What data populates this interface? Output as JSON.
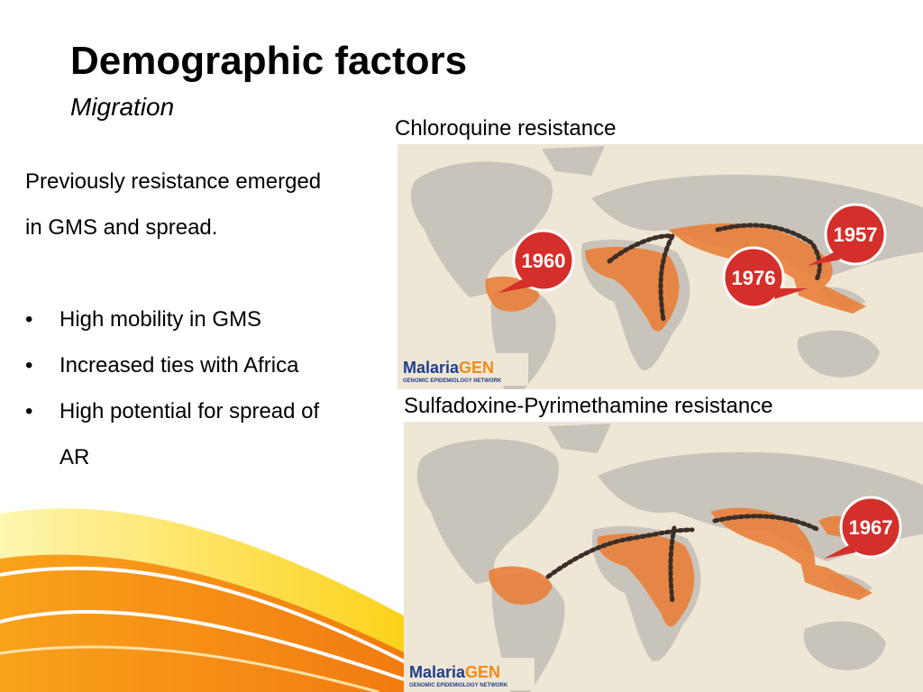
{
  "slide": {
    "title": "Demographic factors",
    "subtitle": "Migration"
  },
  "intro": {
    "line1": "Previously resistance emerged",
    "line2": "in GMS and spread."
  },
  "bullets": [
    {
      "marker": "•",
      "text": "High mobility in GMS"
    },
    {
      "marker": "•",
      "text": "Increased ties with Africa"
    },
    {
      "marker": "•",
      "text": "High potential for spread of",
      "continuation": "AR"
    }
  ],
  "maps": [
    {
      "caption": "Chloroquine resistance",
      "callouts": [
        "1960",
        "1976",
        "1957"
      ],
      "logo": {
        "name": "Malaria",
        "suffix": "GEN",
        "tagline": "GENOMIC EPIDEMIOLOGY NETWORK"
      }
    },
    {
      "caption": "Sulfadoxine-Pyrimethamine resistance",
      "callouts": [
        "1967"
      ],
      "logo": {
        "name": "Malaria",
        "suffix": "GEN",
        "tagline": "GENOMIC EPIDEMIOLOGY NETWORK"
      }
    }
  ],
  "colors": {
    "map_bg": "#efe7d6",
    "land": "#c9c4bb",
    "resistance_area": "#e9803a",
    "callout": "#d42f2a",
    "logo_blue": "#1f3d8c",
    "logo_orange": "#f08a1c",
    "swoosh_orange": "#f7941d",
    "swoosh_yellow": "#fcd116"
  }
}
